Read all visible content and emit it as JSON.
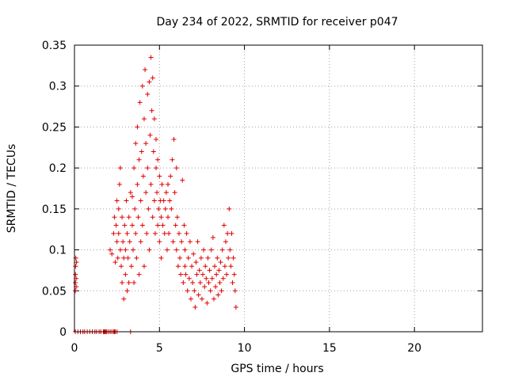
{
  "chart_data": {
    "type": "scatter",
    "title": "Day 234 of 2022, SRMTID for receiver p047",
    "xlabel": "GPS time / hours",
    "ylabel": "SRMTID / TECUs",
    "xlim": [
      0,
      24
    ],
    "ylim": [
      0,
      0.35
    ],
    "xticks": [
      0,
      5,
      10,
      15,
      20
    ],
    "yticks": [
      0,
      0.05,
      0.1,
      0.15,
      0.2,
      0.25,
      0.3,
      0.35
    ],
    "xtick_labels": [
      "0",
      "5",
      "10",
      "15",
      "20"
    ],
    "ytick_labels": [
      "0",
      "0.05",
      "0.1",
      "0.15",
      "0.2",
      "0.25",
      "0.3",
      "0.35"
    ],
    "grid": true,
    "marker": "+",
    "color": "#e00000",
    "series": [
      {
        "name": "SRMTID p047",
        "points": [
          [
            0.05,
            0.05
          ],
          [
            0.05,
            0.06
          ],
          [
            0.06,
            0.07
          ],
          [
            0.07,
            0.08
          ],
          [
            0.08,
            0.09
          ],
          [
            0.1,
            0.055
          ],
          [
            0.1,
            0.065
          ],
          [
            0.12,
            0.085
          ],
          [
            0.05,
            0.0
          ],
          [
            0.2,
            0.0
          ],
          [
            0.35,
            0.0
          ],
          [
            0.5,
            0.0
          ],
          [
            0.6,
            0.0
          ],
          [
            0.75,
            0.0
          ],
          [
            0.9,
            0.0
          ],
          [
            1.05,
            0.0
          ],
          [
            1.2,
            0.0
          ],
          [
            1.3,
            0.0
          ],
          [
            1.45,
            0.0
          ],
          [
            1.55,
            0.0
          ],
          [
            1.7,
            0.0
          ],
          [
            1.75,
            0.0
          ],
          [
            1.8,
            0.0
          ],
          [
            1.85,
            0.0
          ],
          [
            1.9,
            0.0
          ],
          [
            2.0,
            0.0
          ],
          [
            2.1,
            0.0
          ],
          [
            2.2,
            0.0
          ],
          [
            2.3,
            0.0
          ],
          [
            2.35,
            0.0
          ],
          [
            2.4,
            0.0
          ],
          [
            2.5,
            0.0
          ],
          [
            3.3,
            0.0
          ],
          [
            2.1,
            0.1
          ],
          [
            2.2,
            0.095
          ],
          [
            2.3,
            0.12
          ],
          [
            2.35,
            0.14
          ],
          [
            2.4,
            0.085
          ],
          [
            2.45,
            0.13
          ],
          [
            2.5,
            0.16
          ],
          [
            2.5,
            0.11
          ],
          [
            2.55,
            0.09
          ],
          [
            2.6,
            0.15
          ],
          [
            2.6,
            0.12
          ],
          [
            2.65,
            0.18
          ],
          [
            2.7,
            0.2
          ],
          [
            2.7,
            0.1
          ],
          [
            2.75,
            0.08
          ],
          [
            2.8,
            0.14
          ],
          [
            2.8,
            0.06
          ],
          [
            2.85,
            0.11
          ],
          [
            2.9,
            0.04
          ],
          [
            2.9,
            0.09
          ],
          [
            2.95,
            0.13
          ],
          [
            3.0,
            0.07
          ],
          [
            3.0,
            0.1
          ],
          [
            3.05,
            0.16
          ],
          [
            3.1,
            0.12
          ],
          [
            3.1,
            0.05
          ],
          [
            3.15,
            0.09
          ],
          [
            3.2,
            0.14
          ],
          [
            3.2,
            0.06
          ],
          [
            3.25,
            0.11
          ],
          [
            3.3,
            0.17
          ],
          [
            3.35,
            0.08
          ],
          [
            3.4,
            0.13
          ],
          [
            3.4,
            0.165
          ],
          [
            3.45,
            0.1
          ],
          [
            3.5,
            0.2
          ],
          [
            3.5,
            0.06
          ],
          [
            3.55,
            0.15
          ],
          [
            3.6,
            0.23
          ],
          [
            3.6,
            0.12
          ],
          [
            3.65,
            0.09
          ],
          [
            3.7,
            0.18
          ],
          [
            3.7,
            0.25
          ],
          [
            3.75,
            0.14
          ],
          [
            3.8,
            0.21
          ],
          [
            3.8,
            0.07
          ],
          [
            3.85,
            0.28
          ],
          [
            3.9,
            0.16
          ],
          [
            3.9,
            0.11
          ],
          [
            3.95,
            0.22
          ],
          [
            4.0,
            0.3
          ],
          [
            4.0,
            0.13
          ],
          [
            4.05,
            0.19
          ],
          [
            4.1,
            0.26
          ],
          [
            4.1,
            0.08
          ],
          [
            4.15,
            0.32
          ],
          [
            4.2,
            0.17
          ],
          [
            4.2,
            0.23
          ],
          [
            4.25,
            0.12
          ],
          [
            4.3,
            0.29
          ],
          [
            4.3,
            0.2
          ],
          [
            4.35,
            0.15
          ],
          [
            4.4,
            0.305
          ],
          [
            4.4,
            0.1
          ],
          [
            4.45,
            0.24
          ],
          [
            4.5,
            0.335
          ],
          [
            4.5,
            0.18
          ],
          [
            4.55,
            0.27
          ],
          [
            4.6,
            0.14
          ],
          [
            4.6,
            0.31
          ],
          [
            4.65,
            0.22
          ],
          [
            4.7,
            0.26
          ],
          [
            4.7,
            0.16
          ],
          [
            4.75,
            0.12
          ],
          [
            4.8,
            0.235
          ],
          [
            4.8,
            0.2
          ],
          [
            4.85,
            0.17
          ],
          [
            4.9,
            0.21
          ],
          [
            4.9,
            0.13
          ],
          [
            4.95,
            0.15
          ],
          [
            5.0,
            0.19
          ],
          [
            5.0,
            0.11
          ],
          [
            5.05,
            0.16
          ],
          [
            5.1,
            0.14
          ],
          [
            5.1,
            0.09
          ],
          [
            5.15,
            0.18
          ],
          [
            5.2,
            0.13
          ],
          [
            5.25,
            0.16
          ],
          [
            5.3,
            0.12
          ],
          [
            5.35,
            0.15
          ],
          [
            5.4,
            0.17
          ],
          [
            5.45,
            0.1
          ],
          [
            5.5,
            0.14
          ],
          [
            5.5,
            0.18
          ],
          [
            5.55,
            0.12
          ],
          [
            5.6,
            0.16
          ],
          [
            5.65,
            0.19
          ],
          [
            5.7,
            0.15
          ],
          [
            5.75,
            0.21
          ],
          [
            5.8,
            0.11
          ],
          [
            5.85,
            0.235
          ],
          [
            5.9,
            0.17
          ],
          [
            5.95,
            0.13
          ],
          [
            6.0,
            0.2
          ],
          [
            6.0,
            0.1
          ],
          [
            6.05,
            0.14
          ],
          [
            6.1,
            0.08
          ],
          [
            6.15,
            0.12
          ],
          [
            6.2,
            0.09
          ],
          [
            6.25,
            0.07
          ],
          [
            6.3,
            0.11
          ],
          [
            6.35,
            0.185
          ],
          [
            6.4,
            0.06
          ],
          [
            6.45,
            0.13
          ],
          [
            6.5,
            0.08
          ],
          [
            6.5,
            0.1
          ],
          [
            6.55,
            0.07
          ],
          [
            6.6,
            0.12
          ],
          [
            6.65,
            0.05
          ],
          [
            6.7,
            0.09
          ],
          [
            6.75,
            0.065
          ],
          [
            6.8,
            0.11
          ],
          [
            6.85,
            0.04
          ],
          [
            6.9,
            0.08
          ],
          [
            6.95,
            0.06
          ],
          [
            7.0,
            0.095
          ],
          [
            7.05,
            0.05
          ],
          [
            7.1,
            0.03
          ],
          [
            7.15,
            0.085
          ],
          [
            7.2,
            0.07
          ],
          [
            7.25,
            0.11
          ],
          [
            7.3,
            0.045
          ],
          [
            7.35,
            0.075
          ],
          [
            7.4,
            0.06
          ],
          [
            7.45,
            0.09
          ],
          [
            7.5,
            0.04
          ],
          [
            7.55,
            0.07
          ],
          [
            7.6,
            0.1
          ],
          [
            7.65,
            0.055
          ],
          [
            7.7,
            0.08
          ],
          [
            7.75,
            0.065
          ],
          [
            7.8,
            0.035
          ],
          [
            7.85,
            0.09
          ],
          [
            7.9,
            0.06
          ],
          [
            7.95,
            0.075
          ],
          [
            8.0,
            0.05
          ],
          [
            8.05,
            0.1
          ],
          [
            8.1,
            0.065
          ],
          [
            8.15,
            0.115
          ],
          [
            8.2,
            0.04
          ],
          [
            8.25,
            0.08
          ],
          [
            8.3,
            0.055
          ],
          [
            8.35,
            0.07
          ],
          [
            8.4,
            0.09
          ],
          [
            8.45,
            0.045
          ],
          [
            8.5,
            0.075
          ],
          [
            8.55,
            0.06
          ],
          [
            8.6,
            0.085
          ],
          [
            8.65,
            0.05
          ],
          [
            8.7,
            0.1
          ],
          [
            8.75,
            0.065
          ],
          [
            8.8,
            0.13
          ],
          [
            8.85,
            0.08
          ],
          [
            8.9,
            0.11
          ],
          [
            8.95,
            0.07
          ],
          [
            9.0,
            0.12
          ],
          [
            9.05,
            0.09
          ],
          [
            9.1,
            0.15
          ],
          [
            9.15,
            0.1
          ],
          [
            9.2,
            0.08
          ],
          [
            9.25,
            0.12
          ],
          [
            9.3,
            0.06
          ],
          [
            9.35,
            0.09
          ],
          [
            9.4,
            0.07
          ],
          [
            9.45,
            0.05
          ],
          [
            9.5,
            0.03
          ]
        ]
      }
    ]
  }
}
